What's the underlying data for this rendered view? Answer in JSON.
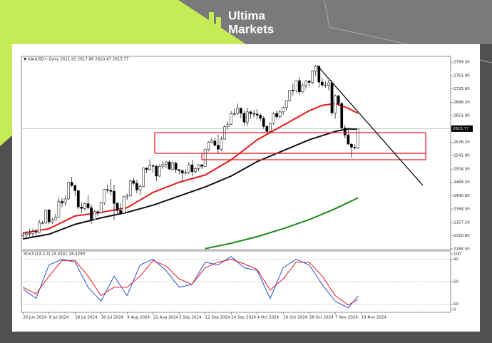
{
  "logo": {
    "line1": "Ultima",
    "line2": "Markets"
  },
  "chart_data": [
    {
      "type": "candlestick",
      "title": "▼ XAUUSD+,Daily 2611.93 2617.86 2610.47 2615.77",
      "up_color": "#ffffff",
      "down_color": "#000000",
      "xlim": [
        -0.5,
        131.5
      ],
      "xticks": [
        {
          "value": 0,
          "label": "26 Jun 2024"
        },
        {
          "value": 8,
          "label": "8 Jul 2024"
        },
        {
          "value": 16,
          "label": "18 Jul 2024"
        },
        {
          "value": 24,
          "label": "30 Jul 2024"
        },
        {
          "value": 32,
          "label": "9 Aug 2024"
        },
        {
          "value": 40,
          "label": "21 Aug 2024"
        },
        {
          "value": 48,
          "label": "2 Sep 2024"
        },
        {
          "value": 56,
          "label": "12 Sep 2024"
        },
        {
          "value": 64,
          "label": "24 Sep 2024"
        },
        {
          "value": 72,
          "label": "4 Oct 2024"
        },
        {
          "value": 80,
          "label": "16 Oct 2024"
        },
        {
          "value": 88,
          "label": "28 Oct 2024"
        },
        {
          "value": 96,
          "label": "7 Nov 2024"
        },
        {
          "value": 104,
          "label": "19 Nov 2024"
        }
      ],
      "ylim": [
        2282.5,
        2815
      ],
      "yticks": [
        {
          "value": 2799.3,
          "label": "2799.30"
        },
        {
          "value": 2761.9,
          "label": "2761.90"
        },
        {
          "value": 2725.6,
          "label": "2725.60"
        },
        {
          "value": 2688.2,
          "label": "2688.20"
        },
        {
          "value": 2651.9,
          "label": "2651.90"
        },
        {
          "value": 2578.2,
          "label": "2578.20"
        },
        {
          "value": 2541.9,
          "label": "2541.90"
        },
        {
          "value": 2504.5,
          "label": "2504.50"
        },
        {
          "value": 2468.2,
          "label": "2468.20"
        },
        {
          "value": 2430.8,
          "label": "2430.80"
        },
        {
          "value": 2394.5,
          "label": "2394.50"
        },
        {
          "value": 2357.1,
          "label": "2357.10"
        },
        {
          "value": 2320.8,
          "label": "2320.80"
        },
        {
          "value": 2284.5,
          "label": "2284.50"
        }
      ],
      "last_price": 2615.77,
      "open": [
        2320,
        2323,
        2326,
        2327,
        2332,
        2330,
        2356,
        2356,
        2392,
        2359,
        2364,
        2372,
        2415,
        2411,
        2422,
        2468,
        2459,
        2445,
        2400,
        2396,
        2409,
        2398,
        2365,
        2387,
        2384,
        2411,
        2448,
        2446,
        2443,
        2410,
        2390,
        2383,
        2428,
        2431,
        2472,
        2465,
        2447,
        2456,
        2507,
        2503,
        2514,
        2512,
        2485,
        2512,
        2518,
        2524,
        2504,
        2521,
        2503,
        2500,
        2493,
        2495,
        2516,
        2497,
        2506,
        2516,
        2512,
        2558,
        2578,
        2582,
        2570,
        2559,
        2587,
        2621,
        2628,
        2657,
        2657,
        2672,
        2658,
        2634,
        2662,
        2657,
        2656,
        2653,
        2644,
        2622,
        2608,
        2630,
        2657,
        2649,
        2662,
        2674,
        2693,
        2722,
        2720,
        2748,
        2717,
        2736,
        2747,
        2743,
        2774,
        2787,
        2744,
        2736,
        2736,
        2742,
        2659,
        2706,
        2685,
        2618,
        2598,
        2573,
        2565,
        2563
      ],
      "high": [
        2331,
        2333,
        2339,
        2340,
        2338,
        2365,
        2362,
        2393,
        2393,
        2370,
        2381,
        2425,
        2424,
        2431,
        2470,
        2483,
        2462,
        2446,
        2412,
        2413,
        2432,
        2407,
        2391,
        2391,
        2414,
        2450,
        2462,
        2477,
        2461,
        2414,
        2410,
        2431,
        2437,
        2475,
        2479,
        2474,
        2462,
        2509,
        2509,
        2531,
        2517,
        2516,
        2517,
        2527,
        2527,
        2528,
        2527,
        2525,
        2504,
        2502,
        2504,
        2524,
        2529,
        2509,
        2518,
        2518,
        2560,
        2581,
        2589,
        2590,
        2600,
        2594,
        2625,
        2635,
        2664,
        2670,
        2685,
        2674,
        2665,
        2673,
        2665,
        2667,
        2670,
        2657,
        2650,
        2625,
        2633,
        2661,
        2666,
        2666,
        2677,
        2695,
        2722,
        2740,
        2749,
        2758,
        2741,
        2749,
        2750,
        2776,
        2791,
        2791,
        2755,
        2746,
        2750,
        2749,
        2710,
        2709,
        2689,
        2626,
        2619,
        2576,
        2573,
        2617
      ],
      "low": [
        2312,
        2315,
        2318,
        2318,
        2320,
        2328,
        2352,
        2352,
        2353,
        2353,
        2363,
        2370,
        2400,
        2403,
        2420,
        2455,
        2430,
        2393,
        2384,
        2390,
        2394,
        2353,
        2364,
        2375,
        2381,
        2406,
        2438,
        2432,
        2364,
        2381,
        2378,
        2382,
        2419,
        2428,
        2460,
        2438,
        2433,
        2455,
        2493,
        2500,
        2494,
        2471,
        2483,
        2505,
        2507,
        2503,
        2501,
        2494,
        2490,
        2472,
        2487,
        2490,
        2485,
        2492,
        2499,
        2504,
        2510,
        2553,
        2575,
        2567,
        2546,
        2555,
        2585,
        2613,
        2625,
        2650,
        2654,
        2644,
        2625,
        2624,
        2643,
        2646,
        2641,
        2637,
        2615,
        2604,
        2605,
        2626,
        2641,
        2644,
        2654,
        2666,
        2690,
        2707,
        2715,
        2708,
        2713,
        2726,
        2732,
        2738,
        2761,
        2729,
        2730,
        2728,
        2722,
        2652,
        2643,
        2679,
        2611,
        2589,
        2572,
        2536,
        2557,
        2559
      ],
      "close": [
        2323,
        2326,
        2327,
        2332,
        2330,
        2356,
        2356,
        2392,
        2359,
        2364,
        2372,
        2415,
        2411,
        2422,
        2468,
        2459,
        2445,
        2400,
        2396,
        2409,
        2398,
        2365,
        2387,
        2384,
        2411,
        2448,
        2446,
        2443,
        2410,
        2390,
        2383,
        2428,
        2431,
        2472,
        2465,
        2447,
        2456,
        2507,
        2503,
        2514,
        2512,
        2485,
        2512,
        2518,
        2524,
        2504,
        2521,
        2503,
        2500,
        2493,
        2495,
        2516,
        2497,
        2506,
        2516,
        2512,
        2558,
        2578,
        2582,
        2570,
        2559,
        2587,
        2621,
        2628,
        2657,
        2657,
        2672,
        2658,
        2634,
        2662,
        2657,
        2656,
        2653,
        2644,
        2622,
        2608,
        2630,
        2657,
        2649,
        2662,
        2674,
        2693,
        2722,
        2720,
        2748,
        2717,
        2736,
        2747,
        2743,
        2774,
        2787,
        2744,
        2736,
        2736,
        2742,
        2659,
        2706,
        2685,
        2618,
        2598,
        2573,
        2565,
        2563,
        2616
      ],
      "lines": [
        {
          "color": "#e31a1c",
          "x": [
            0,
            8,
            16,
            24,
            32,
            40,
            48,
            56,
            64,
            72,
            80,
            88,
            92,
            96,
            100,
            103
          ],
          "values": [
            2328,
            2340,
            2375,
            2385,
            2398,
            2440,
            2468,
            2488,
            2530,
            2585,
            2625,
            2665,
            2680,
            2685,
            2672,
            2658
          ]
        },
        {
          "color": "#111111",
          "x": [
            0,
            8,
            16,
            24,
            32,
            40,
            48,
            56,
            64,
            72,
            80,
            88,
            96,
            100,
            103
          ],
          "values": [
            2312,
            2325,
            2352,
            2370,
            2385,
            2405,
            2430,
            2455,
            2485,
            2525,
            2555,
            2585,
            2608,
            2615,
            2614
          ]
        },
        {
          "color": "#1a8a1a",
          "x": [
            56,
            64,
            72,
            80,
            88,
            96,
            103
          ],
          "values": [
            2285,
            2300,
            2318,
            2340,
            2365,
            2395,
            2425
          ]
        }
      ]
    },
    {
      "type": "line",
      "title": "Stoch(13,3,3) 24.4341 18.4290",
      "ylim": [
        -5,
        105
      ],
      "yticks": [
        0,
        10,
        50,
        90,
        100
      ],
      "grid_at": [
        10,
        50,
        90
      ],
      "x": [
        0,
        4,
        8,
        12,
        16,
        20,
        24,
        28,
        32,
        36,
        40,
        44,
        48,
        52,
        56,
        60,
        64,
        68,
        72,
        76,
        80,
        84,
        88,
        92,
        96,
        100,
        103
      ],
      "series": [
        {
          "color": "#2b4fd8",
          "values": [
            37,
            20,
            80,
            90,
            85,
            40,
            15,
            60,
            25,
            80,
            90,
            70,
            40,
            45,
            85,
            80,
            95,
            75,
            70,
            20,
            75,
            90,
            80,
            45,
            15,
            3,
            24
          ]
        },
        {
          "color": "#e31a1c",
          "values": [
            40,
            28,
            60,
            88,
            88,
            60,
            25,
            40,
            40,
            60,
            88,
            78,
            55,
            45,
            75,
            85,
            90,
            82,
            72,
            35,
            55,
            85,
            85,
            60,
            25,
            8,
            18
          ]
        }
      ]
    }
  ]
}
